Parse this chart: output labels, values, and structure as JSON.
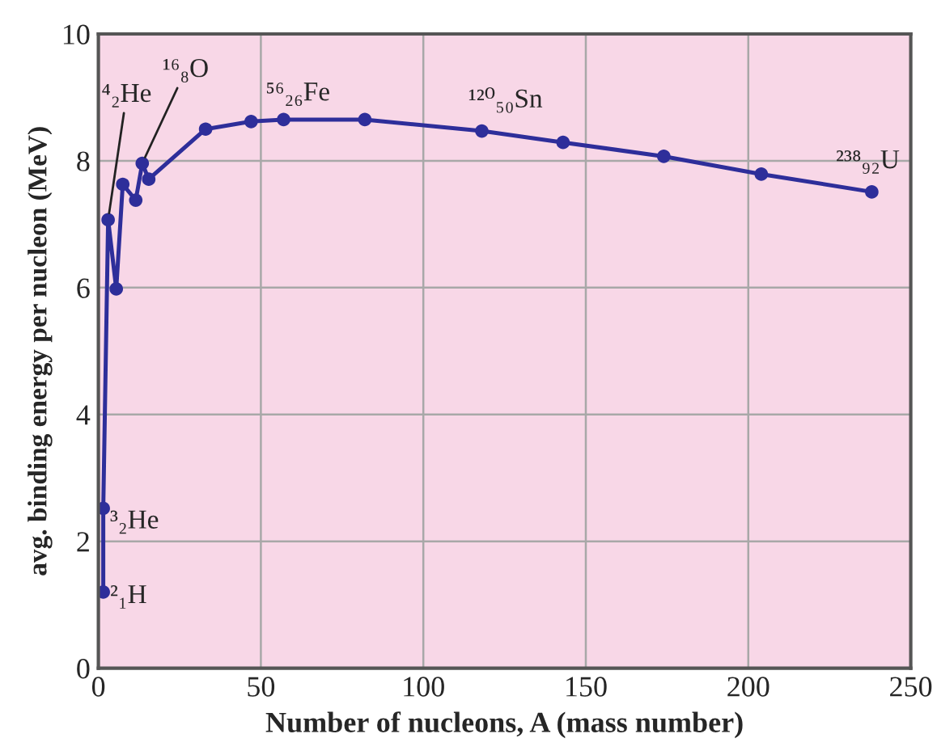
{
  "chart_data": {
    "type": "line",
    "xlabel": "Number of nucleons, A (mass number)",
    "ylabel": "avg. binding energy per nucleon (MeV)",
    "x": [
      1.5,
      1.5,
      3,
      5.5,
      7.5,
      11.5,
      13.5,
      15.5,
      33,
      47,
      57,
      82,
      118,
      143,
      174,
      204,
      238
    ],
    "series": [
      {
        "color": "#2e2e9a",
        "values": [
          1.2,
          2.52,
          7.07,
          5.98,
          7.63,
          7.38,
          7.96,
          7.71,
          8.5,
          8.62,
          8.65,
          8.65,
          8.47,
          8.29,
          8.07,
          7.79,
          7.51
        ]
      }
    ],
    "xlim": [
      0,
      250
    ],
    "xticks": [
      0,
      50,
      100,
      150,
      200,
      250
    ],
    "ylim": [
      0,
      10
    ],
    "yticks": [
      0,
      2,
      4,
      6,
      8,
      10
    ],
    "grid": true,
    "marker": "circle",
    "line_style": "solid",
    "annotations": [
      {
        "text": "²₁H",
        "x": 1.5,
        "y": 1.2
      },
      {
        "text": "³₂He",
        "x": 1.5,
        "y": 2.52
      },
      {
        "text": "⁴₂He",
        "x": 3,
        "y": 7.07
      },
      {
        "text": "¹⁶₈O",
        "x": 13.5,
        "y": 7.96
      },
      {
        "text": "⁵⁶₂₆Fe",
        "x": 57,
        "y": 8.65
      },
      {
        "text": "¹²⁰₅₀Sn",
        "x": 118,
        "y": 8.47
      },
      {
        "text": "²³⁸₉₂U",
        "x": 238,
        "y": 7.51
      }
    ]
  }
}
